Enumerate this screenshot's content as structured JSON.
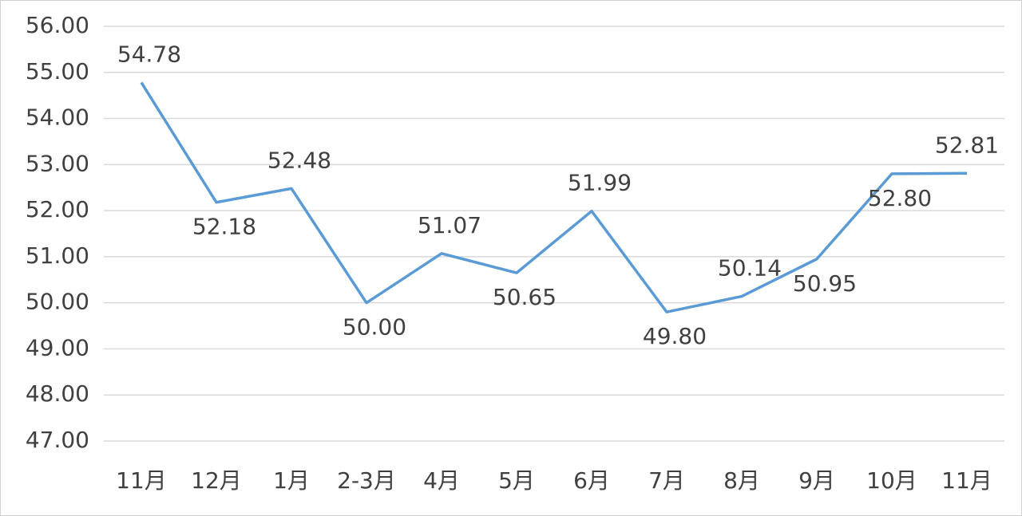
{
  "chart_data": {
    "type": "line",
    "categories": [
      "11月",
      "12月",
      "1月",
      "2-3月",
      "4月",
      "5月",
      "6月",
      "7月",
      "8月",
      "9月",
      "10月",
      "11月"
    ],
    "series": [
      {
        "color": "#5b9bd5",
        "values": [
          54.78,
          52.18,
          52.48,
          50,
          51.07,
          50.65,
          51.99,
          49.8,
          50.14,
          50.95,
          52.8,
          52.81
        ],
        "value_labels": [
          "54.78",
          "52.18",
          "52.48",
          "50.00",
          "51.07",
          "50.65",
          "51.99",
          "49.80",
          "50.14",
          "50.95",
          "52.80",
          "52.81"
        ]
      }
    ],
    "ylim": [
      47,
      56
    ],
    "yticks": [
      {
        "value": 47,
        "label": "47.00"
      },
      {
        "value": 48,
        "label": "48.00"
      },
      {
        "value": 49,
        "label": "49.00"
      },
      {
        "value": 50,
        "label": "50.00"
      },
      {
        "value": 51,
        "label": "51.00"
      },
      {
        "value": 52,
        "label": "52.00"
      },
      {
        "value": 53,
        "label": "53.00"
      },
      {
        "value": 54,
        "label": "54.00"
      },
      {
        "value": 55,
        "label": "55.00"
      },
      {
        "value": 56,
        "label": "56.00"
      }
    ],
    "grid": true
  }
}
